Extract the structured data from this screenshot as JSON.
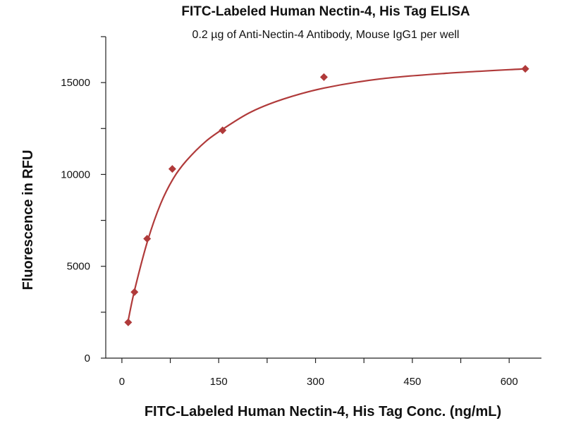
{
  "chart_data": {
    "type": "scatter",
    "title": "FITC-Labeled Human Nectin-4, His Tag ELISA",
    "subtitle": "0.2 µg of Anti-Nectin-4 Antibody, Mouse IgG1 per well",
    "xlabel": "FITC-Labeled Human Nectin-4, His Tag Conc. (ng/mL)",
    "ylabel": "Fluorescence in RFU",
    "xlim": [
      -25,
      650
    ],
    "ylim": [
      0,
      17500
    ],
    "xticks": [
      0,
      150,
      300,
      450,
      600
    ],
    "yticks": [
      0,
      5000,
      10000,
      15000
    ],
    "grid": false,
    "series": [
      {
        "marker": "diamond",
        "color": "#b03a3a",
        "points": [
          {
            "x": 9.77,
            "y": 1950
          },
          {
            "x": 19.5,
            "y": 3600
          },
          {
            "x": 39.1,
            "y": 6500
          },
          {
            "x": 78.1,
            "y": 10300
          },
          {
            "x": 156,
            "y": 12400
          },
          {
            "x": 313,
            "y": 15300
          },
          {
            "x": 625,
            "y": 15750
          }
        ]
      }
    ],
    "fit_curve": {
      "color": "#b03a3a",
      "points": [
        {
          "x": 9.77,
          "y": 2050
        },
        {
          "x": 20,
          "y": 3750
        },
        {
          "x": 40,
          "y": 6400
        },
        {
          "x": 60,
          "y": 8400
        },
        {
          "x": 80,
          "y": 9800
        },
        {
          "x": 100,
          "y": 10750
        },
        {
          "x": 130,
          "y": 11800
        },
        {
          "x": 160,
          "y": 12550
        },
        {
          "x": 200,
          "y": 13400
        },
        {
          "x": 250,
          "y": 14100
        },
        {
          "x": 313,
          "y": 14700
        },
        {
          "x": 400,
          "y": 15200
        },
        {
          "x": 500,
          "y": 15500
        },
        {
          "x": 625,
          "y": 15750
        }
      ]
    }
  }
}
